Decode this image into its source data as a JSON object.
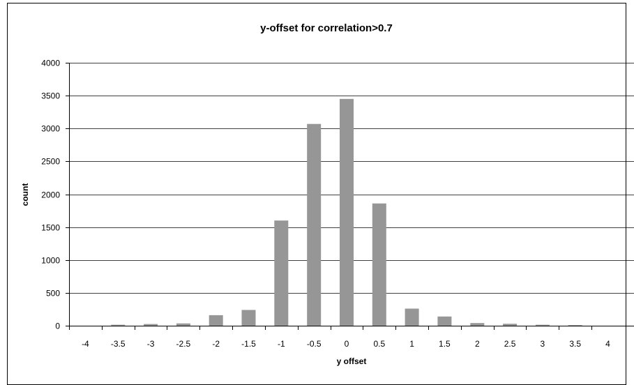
{
  "chart_data": {
    "type": "bar",
    "title": "y-offset for correlation>0.7",
    "xlabel": "y offset",
    "ylabel": "count",
    "categories": [
      "-4",
      "-3.5",
      "-3",
      "-2.5",
      "-2",
      "-1.5",
      "-1",
      "-0.5",
      "0",
      "0.5",
      "1",
      "1.5",
      "2",
      "2.5",
      "3",
      "3.5",
      "4"
    ],
    "values": [
      0,
      15,
      25,
      35,
      160,
      240,
      1600,
      3070,
      3450,
      1860,
      260,
      140,
      40,
      30,
      15,
      10,
      0
    ],
    "ylim": [
      0,
      4000
    ],
    "yticks": [
      0,
      500,
      1000,
      1500,
      2000,
      2500,
      3000,
      3500,
      4000
    ],
    "grid": "horizontal",
    "legend": "none",
    "bar_color": "#969696",
    "grid_color": "#000000"
  }
}
